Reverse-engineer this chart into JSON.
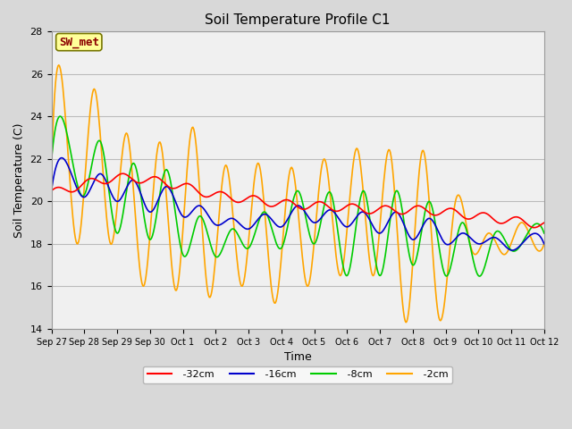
{
  "title": "Soil Temperature Profile C1",
  "xlabel": "Time",
  "ylabel": "Soil Temperature (C)",
  "ylim": [
    14,
    28
  ],
  "yticks": [
    14,
    16,
    18,
    20,
    22,
    24,
    26,
    28
  ],
  "annotation_label": "SW_met",
  "annotation_color": "#8B0000",
  "annotation_bg": "#FFFF99",
  "series_colors": {
    "-32cm": "#FF0000",
    "-16cm": "#0000CC",
    "-8cm": "#00CC00",
    "-2cm": "#FFA500"
  },
  "background_outer": "#D8D8D8",
  "background_inner": "#F0F0F0",
  "grid_color": "#BBBBBB",
  "xtick_labels": [
    "Sep 27",
    "Sep 28",
    "Sep 29",
    "Sep 30",
    "Oct 1",
    "Oct 2",
    "Oct 3",
    "Oct 4",
    "Oct 5",
    "Oct 6",
    "Oct 7",
    "Oct 8",
    "Oct 9",
    "Oct 10",
    "Oct 11",
    "Oct 12"
  ],
  "figwidth": 6.4,
  "figheight": 4.8,
  "dpi": 100
}
